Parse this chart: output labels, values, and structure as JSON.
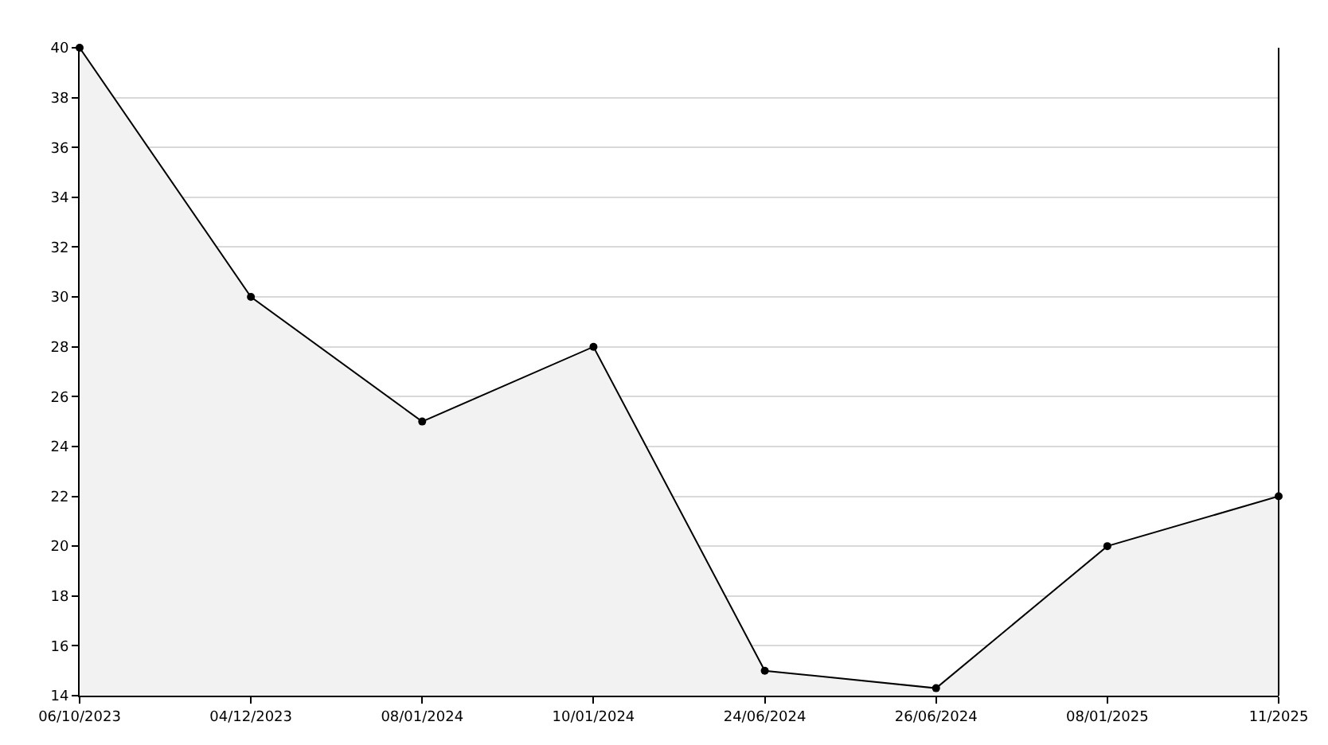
{
  "chart_data": {
    "type": "area",
    "categories": [
      "06/10/2023",
      "04/12/2023",
      "08/01/2024",
      "10/01/2024",
      "24/06/2024",
      "26/06/2024",
      "08/01/2025",
      "11/2025"
    ],
    "series": [
      {
        "color": "#000000",
        "values": [
          40,
          30,
          25,
          28,
          15,
          14.3,
          20,
          22
        ]
      }
    ],
    "ylim": [
      14,
      40
    ],
    "yticks": [
      14,
      16,
      18,
      20,
      22,
      24,
      26,
      28,
      30,
      32,
      34,
      36,
      38,
      40
    ],
    "grid": "y",
    "marker": "circle",
    "line_style": "solid"
  }
}
